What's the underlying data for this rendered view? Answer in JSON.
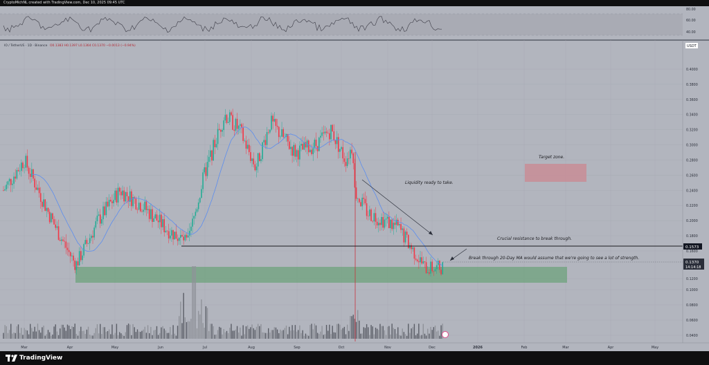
{
  "header": {
    "attribution": "CryptoMichNL created with TradingView.com, Dec 10, 2025 09:45 UTC"
  },
  "footer": {
    "brand": "TradingView"
  },
  "legend": {
    "symbol": "IO / TetherUS · 1D · Binance",
    "ohlc": "O0.1383 H0.1397 L0.1364 C0.1370 −0.0013 (−0.94%)"
  },
  "currency": "USDT",
  "colors": {
    "up": "#22ab94",
    "down": "#f23645",
    "ma": "#5b8def",
    "green_zone": "#6ea37c",
    "target_zone": "#c88d96"
  },
  "price_axis": {
    "ticks": [
      "0.4000",
      "0.3800",
      "0.3600",
      "0.3400",
      "0.3200",
      "0.3000",
      "0.2800",
      "0.2600",
      "0.2400",
      "0.2200",
      "0.2000",
      "0.1800",
      "0.1600",
      "0.1200",
      "0.1000",
      "0.0800",
      "0.0600",
      "0.0400"
    ],
    "resistance_label": "0.1573",
    "last_price_label": "0.1370",
    "countdown_label": "14:14:18"
  },
  "rsi_axis": {
    "ticks": [
      "80.00",
      "60.00",
      "40.00"
    ]
  },
  "time_axis": {
    "labels": [
      "Mar",
      "Apr",
      "May",
      "Jun",
      "Jul",
      "Aug",
      "Sep",
      "Oct",
      "Nov",
      "Dec",
      "2026",
      "Feb",
      "Mar",
      "Apr",
      "May"
    ]
  },
  "annotations": {
    "target": "Target zone.",
    "liquidity": "Liquidity ready to take.",
    "resistance": "Crucial resistance to break through.",
    "breakthrough": "Break through 20-Day MA would assume that we're going to see a lot of strength."
  },
  "chart_data": {
    "type": "candlestick",
    "y_scale_note": "price axis 0.04–0.40 with compressed lower segment",
    "resistance_level": 0.1573,
    "last_price": 0.137,
    "green_support_zone": [
      0.11,
      0.128
    ],
    "target_zone": [
      0.243,
      0.266
    ],
    "series": [
      {
        "name": "price_path",
        "dates": [
          "2025-02-15",
          "2025-03-01",
          "2025-03-20",
          "2025-04-05",
          "2025-04-20",
          "2025-05-05",
          "2025-05-20",
          "2025-06-05",
          "2025-06-20",
          "2025-07-01",
          "2025-07-15",
          "2025-07-25",
          "2025-08-05",
          "2025-08-15",
          "2025-09-01",
          "2025-09-15",
          "2025-09-25",
          "2025-10-05",
          "2025-10-10",
          "2025-10-11",
          "2025-10-20",
          "2025-11-01",
          "2025-11-10",
          "2025-11-20",
          "2025-11-28",
          "2025-12-05",
          "2025-12-10"
        ],
        "close": [
          0.24,
          0.28,
          0.2,
          0.14,
          0.2,
          0.24,
          0.22,
          0.19,
          0.17,
          0.26,
          0.34,
          0.32,
          0.27,
          0.33,
          0.29,
          0.3,
          0.32,
          0.28,
          0.3,
          0.24,
          0.21,
          0.2,
          0.19,
          0.16,
          0.135,
          0.135,
          0.137
        ]
      }
    ]
  }
}
